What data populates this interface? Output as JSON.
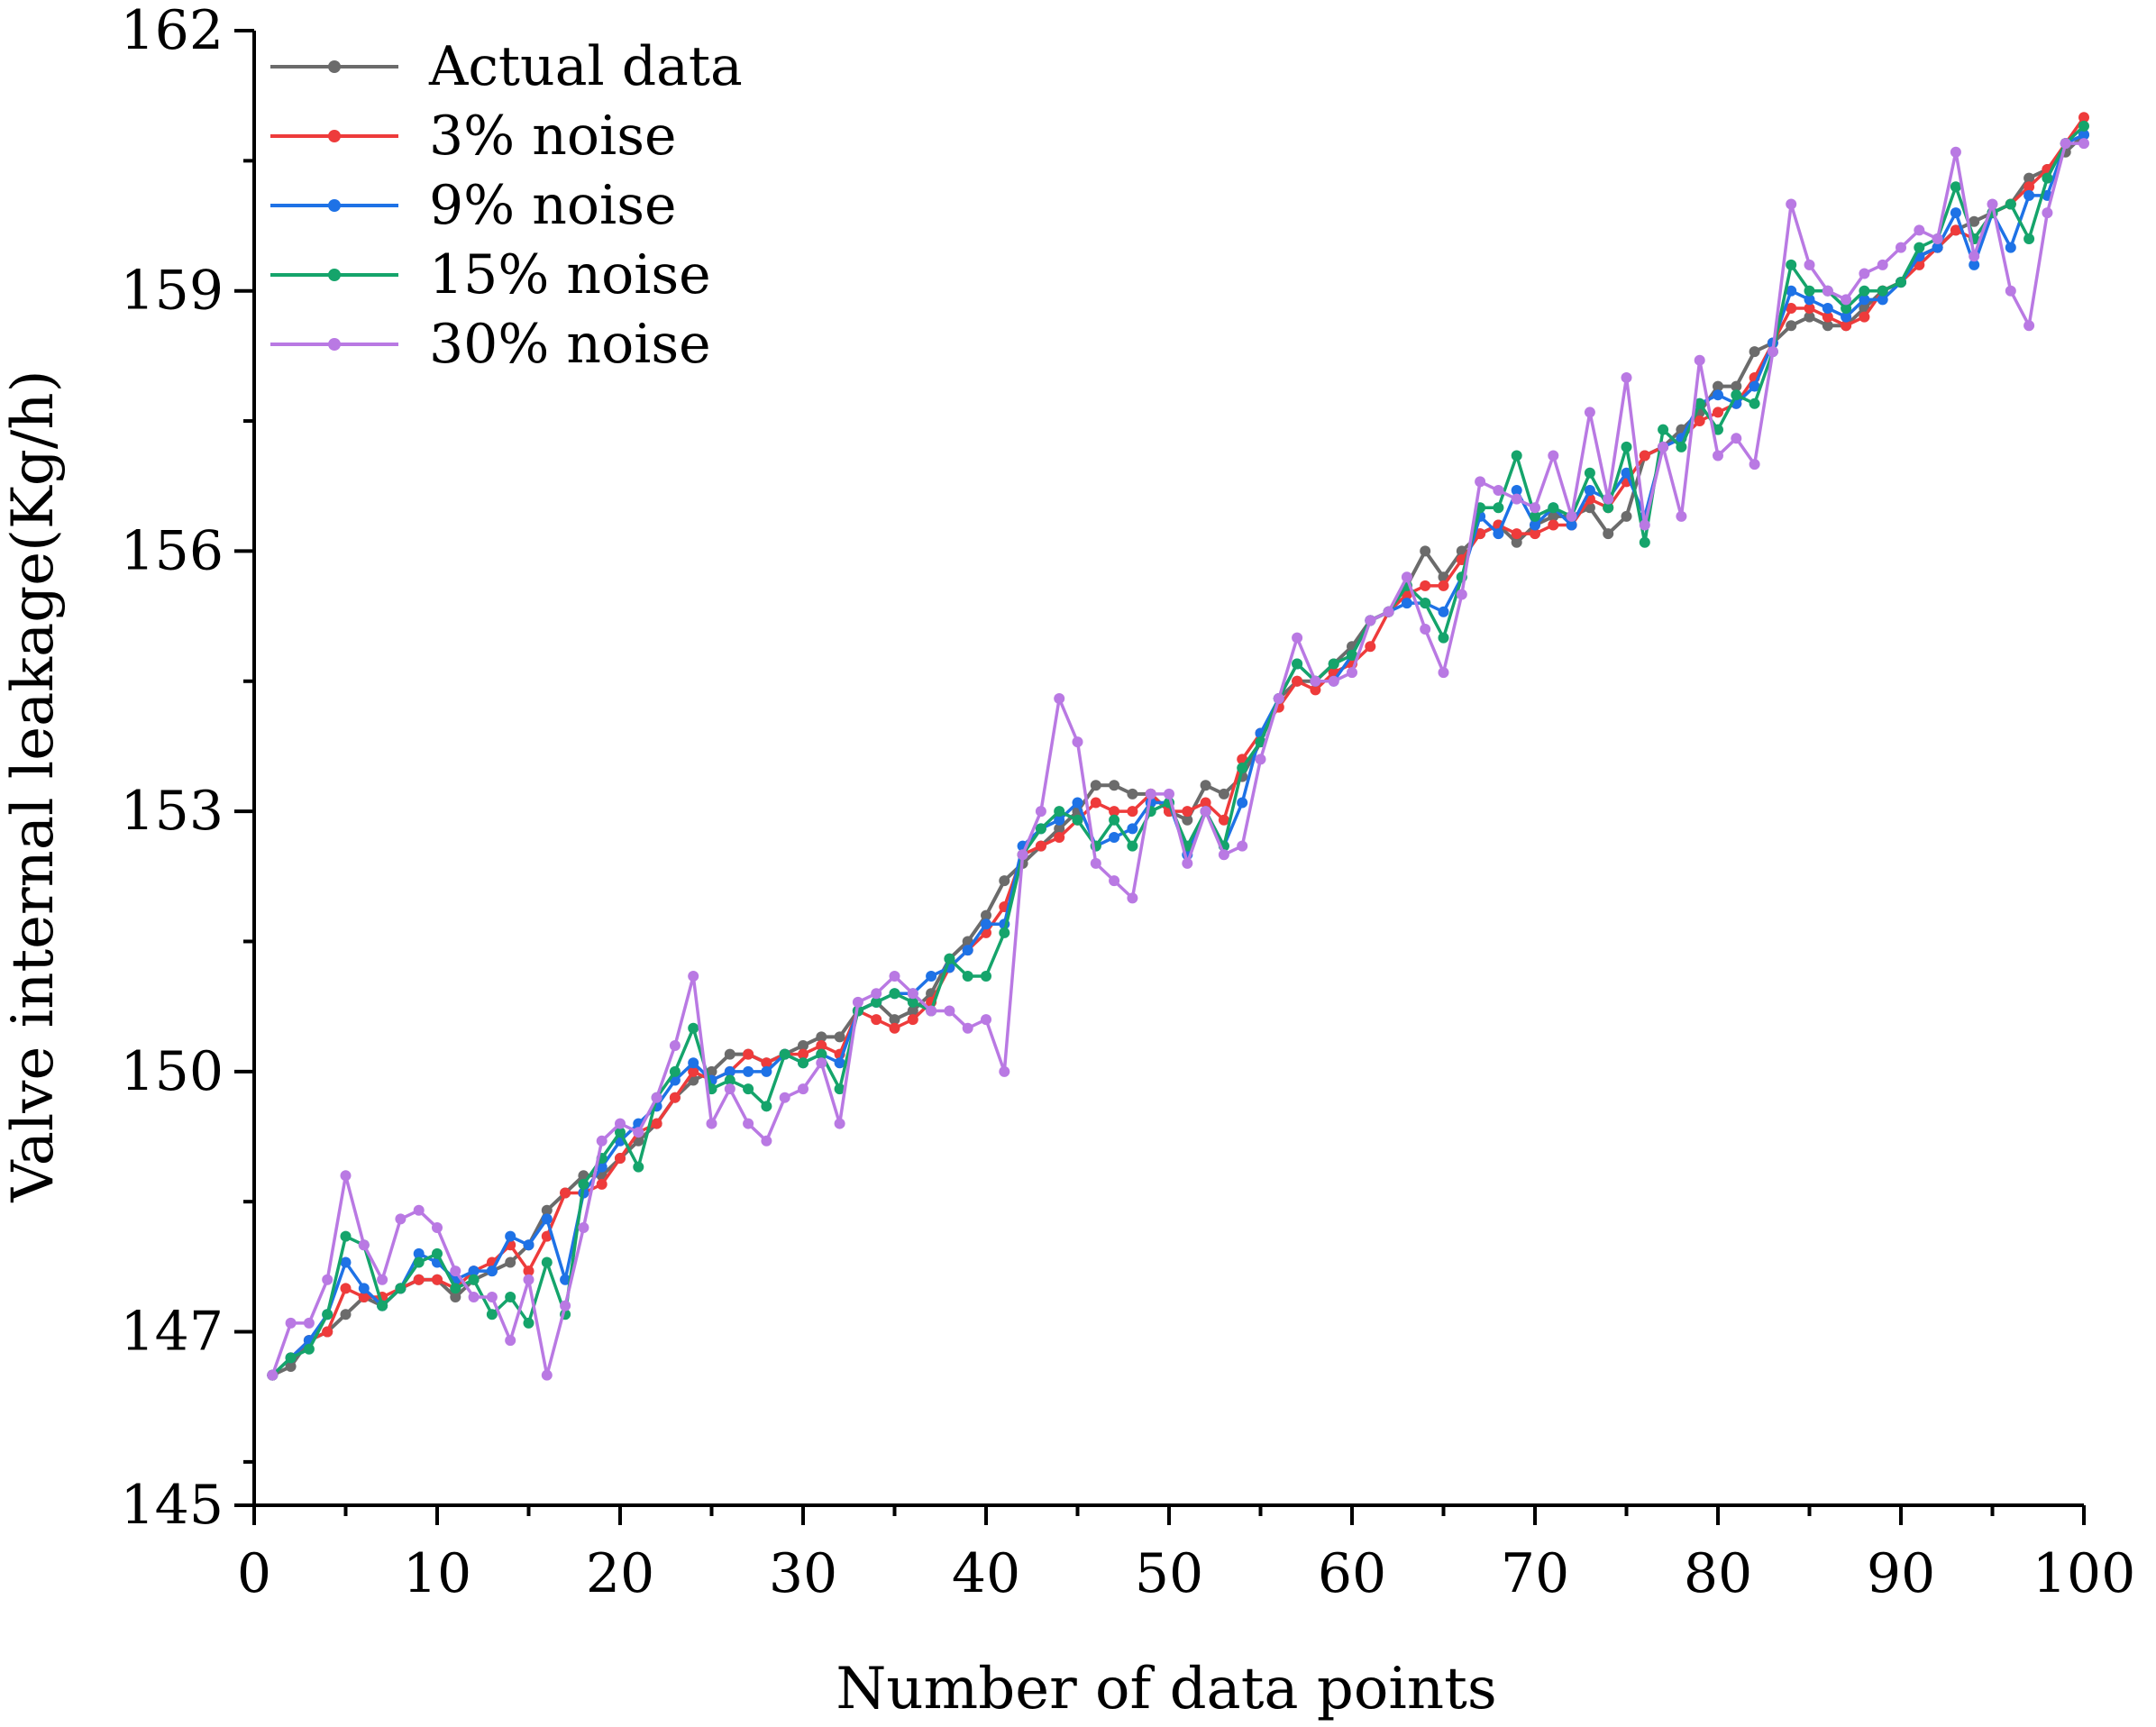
{
  "chart_data": {
    "type": "line",
    "title": "",
    "xlabel": "Number of data points",
    "ylabel": "Valve internal leakage(Kg/h)",
    "xlim": [
      0,
      100
    ],
    "ylim": [
      145,
      162
    ],
    "x_ticks": [
      0,
      10,
      20,
      30,
      40,
      50,
      60,
      70,
      80,
      90,
      100
    ],
    "y_ticks": [
      145,
      147,
      150,
      153,
      156,
      159,
      162
    ],
    "grid": false,
    "legend_position": "top-left",
    "x": [
      1,
      2,
      3,
      4,
      5,
      6,
      7,
      8,
      9,
      10,
      11,
      12,
      13,
      14,
      15,
      16,
      17,
      18,
      19,
      20,
      21,
      22,
      23,
      24,
      25,
      26,
      27,
      28,
      29,
      30,
      31,
      32,
      33,
      34,
      35,
      36,
      37,
      38,
      39,
      40,
      41,
      42,
      43,
      44,
      45,
      46,
      47,
      48,
      49,
      50,
      51,
      52,
      53,
      54,
      55,
      56,
      57,
      58,
      59,
      60,
      61,
      62,
      63,
      64,
      65,
      66,
      67,
      68,
      69,
      70,
      71,
      72,
      73,
      74,
      75,
      76,
      77,
      78,
      79,
      80,
      81,
      82,
      83,
      84,
      85,
      86,
      87,
      88,
      89,
      90,
      91,
      92,
      93,
      94,
      95,
      96,
      97,
      98,
      99,
      100
    ],
    "series": [
      {
        "name": "Actual data",
        "color": "#6b6b6b",
        "values": [
          146.5,
          146.6,
          146.9,
          147.0,
          147.2,
          147.4,
          147.3,
          147.5,
          147.6,
          147.6,
          147.4,
          147.6,
          147.7,
          147.8,
          148.0,
          148.4,
          148.6,
          148.8,
          148.8,
          149.0,
          149.2,
          149.4,
          149.7,
          149.9,
          150.0,
          150.2,
          150.2,
          150.1,
          150.2,
          150.3,
          150.4,
          150.4,
          150.7,
          150.8,
          150.6,
          150.7,
          150.9,
          151.3,
          151.5,
          151.8,
          152.2,
          152.4,
          152.6,
          152.8,
          153.0,
          153.3,
          153.3,
          153.2,
          153.2,
          153.0,
          152.9,
          153.3,
          153.2,
          153.4,
          153.8,
          154.3,
          154.5,
          154.5,
          154.7,
          154.9,
          155.2,
          155.3,
          155.6,
          156.0,
          155.7,
          156.0,
          156.2,
          156.3,
          156.1,
          156.3,
          156.4,
          156.4,
          156.5,
          156.2,
          156.4,
          157.1,
          157.2,
          157.4,
          157.6,
          157.9,
          157.9,
          158.3,
          158.4,
          158.6,
          158.7,
          158.6,
          158.6,
          158.8,
          159.0,
          159.1,
          159.4,
          159.5,
          159.7,
          159.8,
          159.9,
          160.0,
          160.3,
          160.4,
          160.6,
          160.8
        ]
      },
      {
        "name": "3% noise",
        "color": "#ee3b3b",
        "values": [
          146.5,
          146.7,
          146.9,
          147.0,
          147.5,
          147.4,
          147.4,
          147.5,
          147.6,
          147.6,
          147.5,
          147.7,
          147.8,
          148.0,
          147.7,
          148.1,
          148.6,
          148.6,
          148.7,
          149.0,
          149.3,
          149.4,
          149.7,
          150.0,
          149.9,
          150.0,
          150.2,
          150.1,
          150.2,
          150.2,
          150.3,
          150.2,
          150.7,
          150.6,
          150.5,
          150.6,
          150.8,
          151.2,
          151.4,
          151.6,
          151.9,
          152.5,
          152.6,
          152.7,
          152.9,
          153.1,
          153.0,
          153.0,
          153.2,
          153.0,
          153.0,
          153.1,
          152.9,
          153.6,
          153.9,
          154.2,
          154.5,
          154.4,
          154.6,
          154.7,
          154.9,
          155.3,
          155.5,
          155.6,
          155.6,
          155.9,
          156.2,
          156.3,
          156.2,
          156.2,
          156.3,
          156.3,
          156.6,
          156.5,
          156.8,
          157.1,
          157.2,
          157.3,
          157.5,
          157.6,
          157.7,
          158.0,
          158.4,
          158.8,
          158.8,
          158.7,
          158.6,
          158.7,
          159.0,
          159.1,
          159.3,
          159.5,
          159.7,
          159.6,
          159.9,
          160.0,
          160.2,
          160.4,
          160.7,
          161.0
        ]
      },
      {
        "name": "9% noise",
        "color": "#1e72e6",
        "values": [
          146.5,
          146.7,
          146.9,
          147.2,
          147.8,
          147.5,
          147.3,
          147.5,
          147.9,
          147.8,
          147.6,
          147.7,
          147.7,
          148.1,
          148.0,
          148.3,
          147.6,
          148.6,
          148.9,
          149.2,
          149.4,
          149.6,
          149.9,
          150.1,
          149.9,
          150.0,
          150.0,
          150.0,
          150.2,
          150.1,
          150.2,
          150.1,
          150.7,
          150.8,
          150.9,
          150.9,
          151.1,
          151.2,
          151.4,
          151.7,
          151.7,
          152.6,
          152.8,
          152.9,
          153.1,
          152.6,
          152.7,
          152.8,
          153.1,
          153.1,
          152.5,
          153.0,
          152.6,
          153.1,
          153.9,
          154.3,
          154.7,
          154.5,
          154.5,
          154.8,
          155.2,
          155.3,
          155.4,
          155.4,
          155.3,
          155.7,
          156.4,
          156.2,
          156.7,
          156.3,
          156.5,
          156.3,
          156.7,
          156.6,
          156.9,
          156.4,
          157.2,
          157.3,
          157.7,
          157.8,
          157.7,
          157.9,
          158.4,
          159.0,
          158.9,
          158.8,
          158.7,
          158.9,
          158.9,
          159.1,
          159.4,
          159.5,
          159.9,
          159.3,
          159.9,
          159.5,
          160.1,
          160.1,
          160.7,
          160.8
        ]
      },
      {
        "name": "15% noise",
        "color": "#15a46b",
        "values": [
          146.5,
          146.7,
          146.8,
          147.2,
          148.1,
          148.0,
          147.3,
          147.5,
          147.8,
          147.9,
          147.5,
          147.6,
          147.2,
          147.4,
          147.1,
          147.8,
          147.2,
          148.7,
          149.0,
          149.3,
          148.9,
          149.7,
          150.0,
          150.5,
          149.8,
          149.9,
          149.8,
          149.6,
          150.2,
          150.1,
          150.2,
          149.8,
          150.7,
          150.8,
          150.9,
          150.8,
          150.7,
          151.3,
          151.1,
          151.1,
          151.6,
          152.5,
          152.8,
          153.0,
          152.9,
          152.6,
          152.9,
          152.6,
          153.0,
          153.1,
          152.6,
          153.0,
          152.6,
          153.5,
          153.8,
          154.3,
          154.7,
          154.5,
          154.7,
          154.8,
          155.2,
          155.3,
          155.6,
          155.4,
          155.0,
          155.7,
          156.5,
          156.5,
          157.1,
          156.4,
          156.5,
          156.4,
          156.9,
          156.5,
          157.2,
          156.1,
          157.4,
          157.2,
          157.7,
          157.4,
          157.8,
          157.7,
          158.3,
          159.3,
          159.0,
          159.0,
          158.8,
          159.0,
          159.0,
          159.1,
          159.5,
          159.6,
          160.2,
          159.6,
          159.9,
          160.0,
          159.6,
          160.3,
          160.7,
          160.9
        ]
      },
      {
        "name": "30% noise",
        "color": "#b979e3",
        "values": [
          146.5,
          147.1,
          147.1,
          147.6,
          148.8,
          148.0,
          147.6,
          148.3,
          148.4,
          148.2,
          147.7,
          147.4,
          147.4,
          146.9,
          147.6,
          146.5,
          147.3,
          148.2,
          149.2,
          149.4,
          149.3,
          149.7,
          150.3,
          151.1,
          149.4,
          149.8,
          149.4,
          149.2,
          149.7,
          149.8,
          150.1,
          149.4,
          150.8,
          150.9,
          151.1,
          150.9,
          150.7,
          150.7,
          150.5,
          150.6,
          150.0,
          152.5,
          153.0,
          154.3,
          153.8,
          152.4,
          152.2,
          152.0,
          153.2,
          153.2,
          152.4,
          153.0,
          152.5,
          152.6,
          153.6,
          154.3,
          155.0,
          154.5,
          154.5,
          154.6,
          155.2,
          155.3,
          155.7,
          155.1,
          154.6,
          155.5,
          156.8,
          156.7,
          156.6,
          156.5,
          157.1,
          156.4,
          157.6,
          156.6,
          158.0,
          156.3,
          157.2,
          156.4,
          158.2,
          157.1,
          157.3,
          157.0,
          158.3,
          160.0,
          159.3,
          159.0,
          158.9,
          159.2,
          159.3,
          159.5,
          159.7,
          159.6,
          160.6,
          159.4,
          160.0,
          159.0,
          158.6,
          159.9,
          160.7,
          160.7
        ]
      }
    ]
  }
}
